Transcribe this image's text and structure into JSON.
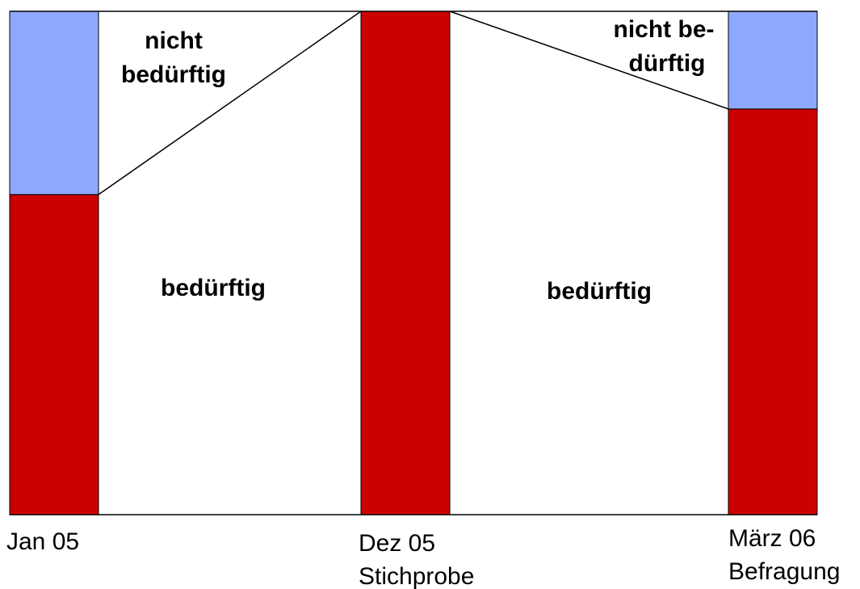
{
  "chart_data": {
    "type": "bar",
    "stacked": true,
    "categories": [
      [
        "Jan 05"
      ],
      [
        "Dez 05",
        "Stichprobe"
      ],
      [
        "März 06",
        "Befragung"
      ]
    ],
    "series": [
      {
        "color": "#cc0000",
        "values": [
          63.6,
          100,
          80.6
        ]
      },
      {
        "color": "#8fa8ff",
        "values": [
          36.4,
          0,
          19.4
        ]
      }
    ],
    "ylim": [
      0,
      100
    ],
    "annotations": [
      {
        "lines": [
          "nicht",
          "bedürftig"
        ]
      },
      {
        "lines": [
          "bedürftig"
        ]
      },
      {
        "lines": [
          "nicht be-",
          "dürftig"
        ]
      },
      {
        "lines": [
          "bedürftig"
        ]
      }
    ]
  }
}
